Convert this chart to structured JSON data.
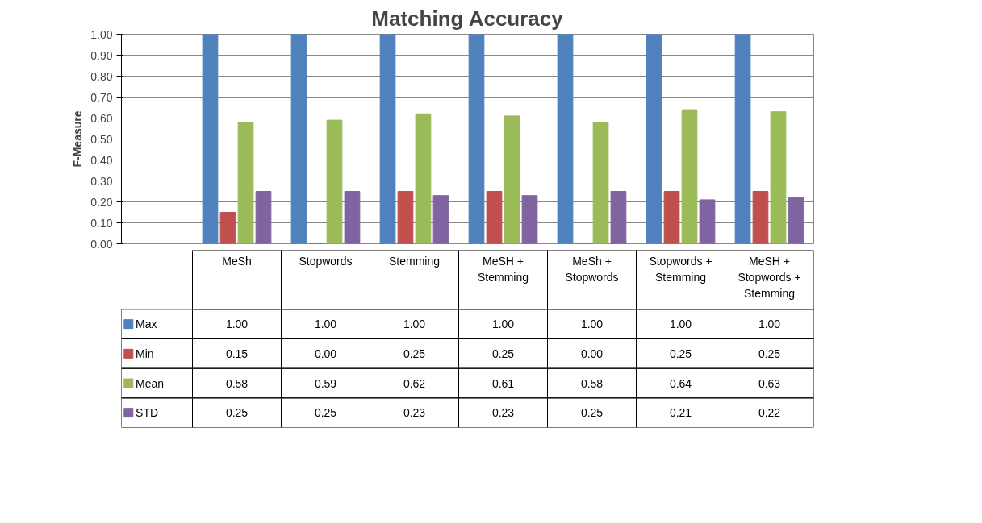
{
  "chart_data": {
    "type": "bar",
    "title": "Matching Accuracy",
    "ylabel": "F-Measure",
    "categories": [
      "MeSh",
      "Stopwords",
      "Stemming",
      "MeSH + Stemming",
      "MeSh + Stopwords",
      "Stopwords + Stemming",
      "MeSH + Stopwords + Stemming"
    ],
    "series": [
      {
        "name": "Max",
        "color": "#4f81bd",
        "values": [
          1.0,
          1.0,
          1.0,
          1.0,
          1.0,
          1.0,
          1.0
        ],
        "value_labels": [
          "1.00",
          "1.00",
          "1.00",
          "1.00",
          "1.00",
          "1.00",
          "1.00"
        ]
      },
      {
        "name": "Min",
        "color": "#c0504d",
        "values": [
          0.15,
          0.0,
          0.25,
          0.25,
          0.0,
          0.25,
          0.25
        ],
        "value_labels": [
          "0.15",
          "0.00",
          "0.25",
          "0.25",
          "0.00",
          "0.25",
          "0.25"
        ]
      },
      {
        "name": "Mean",
        "color": "#9bbb59",
        "values": [
          0.58,
          0.59,
          0.62,
          0.61,
          0.58,
          0.64,
          0.63
        ],
        "value_labels": [
          "0.58",
          "0.59",
          "0.62",
          "0.61",
          "0.58",
          "0.64",
          "0.63"
        ]
      },
      {
        "name": "STD",
        "color": "#8064a2",
        "values": [
          0.25,
          0.25,
          0.23,
          0.23,
          0.25,
          0.21,
          0.22
        ],
        "value_labels": [
          "0.25",
          "0.25",
          "0.23",
          "0.23",
          "0.25",
          "0.21",
          "0.22"
        ]
      }
    ],
    "ylim": [
      0,
      1
    ],
    "yticks": [
      {
        "value": 0,
        "label": "0.00"
      },
      {
        "value": 0.1,
        "label": "0.10"
      },
      {
        "value": 0.2,
        "label": "0.20"
      },
      {
        "value": 0.3,
        "label": "0.30"
      },
      {
        "value": 0.4,
        "label": "0.40"
      },
      {
        "value": 0.5,
        "label": "0.50"
      },
      {
        "value": 0.6,
        "label": "0.60"
      },
      {
        "value": 0.7,
        "label": "0.70"
      },
      {
        "value": 0.8,
        "label": "0.80"
      },
      {
        "value": 0.9,
        "label": "0.90"
      },
      {
        "value": 1,
        "label": "1.00"
      }
    ],
    "grid": "y",
    "legend": "bottom"
  }
}
